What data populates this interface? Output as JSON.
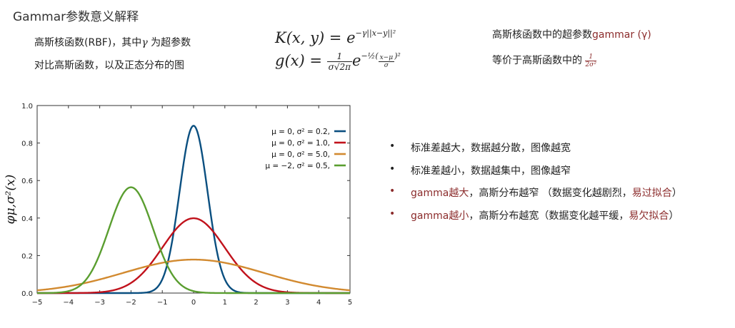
{
  "title": "Gammar参数意义解释",
  "intro": {
    "line1_pre": "高斯核函数(RBF)，其中",
    "line1_symbol": "γ",
    "line1_post": " 为超参数",
    "line2": "对比高斯函数，以及正态分布的图"
  },
  "formulas": {
    "k_lhs": "K(x, y) = e",
    "k_exp": "−γ||x−y||²",
    "g_lhs": "g(x) =",
    "g_num": "1",
    "g_den": "σ√2π",
    "g_e": "e",
    "g_exp_pre": "−½(",
    "g_exp_num": "x−μ",
    "g_exp_den": "σ",
    "g_exp_post": ")²"
  },
  "right_notes": {
    "line1_pre": "高斯核函数中的超参数",
    "line1_accent": "gammar (γ)",
    "line2_pre": "等价于高斯函数中的",
    "line2_frac_num": "1",
    "line2_frac_den": "2σ²"
  },
  "bullets": [
    {
      "parts": [
        {
          "text": "标准差越大，数据越分散，图像越宽",
          "accent": false
        }
      ],
      "dot_color": "dark"
    },
    {
      "parts": [
        {
          "text": "标准差越小，数据越集中，图像越窄",
          "accent": false
        }
      ],
      "dot_color": "dark"
    },
    {
      "parts": [
        {
          "text": "gamma越大",
          "accent": true
        },
        {
          "text": "，高斯分布越窄 （数据变化越剧烈，",
          "accent": false
        },
        {
          "text": "易过拟合",
          "accent": true
        },
        {
          "text": "）",
          "accent": false
        }
      ],
      "dot_color": "red"
    },
    {
      "parts": [
        {
          "text": "gamma越小",
          "accent": true
        },
        {
          "text": "，高斯分布越宽（数据变化越平缓，",
          "accent": false
        },
        {
          "text": "易欠拟合",
          "accent": true
        },
        {
          "text": "）",
          "accent": false
        }
      ],
      "dot_color": "red"
    }
  ],
  "chart_data": {
    "type": "line",
    "ylabel": "φμ,σ²(x)",
    "xlim": [
      -5,
      5
    ],
    "ylim": [
      0,
      1.0
    ],
    "xticks": [
      "−5",
      "−4",
      "−3",
      "−2",
      "−1",
      "0",
      "1",
      "2",
      "3",
      "4",
      "5"
    ],
    "yticks": [
      "0.0",
      "0.2",
      "0.4",
      "0.6",
      "0.8",
      "1.0"
    ],
    "grid": false,
    "legend": "top-right",
    "series": [
      {
        "name": "μ = 0,   σ² = 0.2,",
        "mu": 0,
        "var": 0.2,
        "color": "#0a4f80"
      },
      {
        "name": "μ = 0,   σ² = 1.0,",
        "mu": 0,
        "var": 1.0,
        "color": "#c1121c"
      },
      {
        "name": "μ = 0,   σ² = 5.0,",
        "mu": 0,
        "var": 5.0,
        "color": "#d28a30"
      },
      {
        "name": "μ = −2,  σ² = 0.5,",
        "mu": -2,
        "var": 0.5,
        "color": "#5a9e30"
      }
    ]
  }
}
